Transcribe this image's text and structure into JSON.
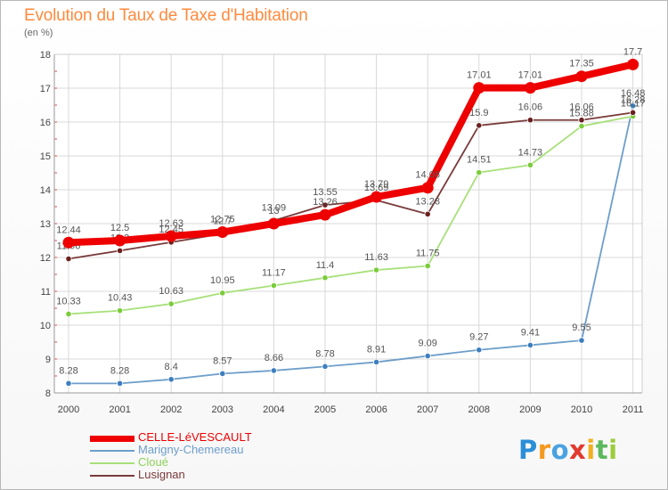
{
  "title": "Evolution du Taux de Taxe d'Habitation",
  "subtitle": "(en %)",
  "logo_text": "Proxiti",
  "logo_letters": [
    {
      "ch": "P",
      "color": "#2b8fd8"
    },
    {
      "ch": "r",
      "color": "#f39a1e"
    },
    {
      "ch": "o",
      "color": "#4aa3e0"
    },
    {
      "ch": "x",
      "color": "#e23a2e"
    },
    {
      "ch": "i",
      "color": "#f2b01e"
    },
    {
      "ch": "t",
      "color": "#5cb85c"
    },
    {
      "ch": "i",
      "color": "#9ccc3c"
    }
  ],
  "chart_data": {
    "type": "line",
    "title": "Evolution du Taux de Taxe d'Habitation",
    "subtitle": "(en %)",
    "xlabel": "",
    "ylabel": "",
    "ylim": [
      8,
      18
    ],
    "yticks": [
      "8",
      "9",
      "10",
      "11",
      "12",
      "13",
      "14",
      "15",
      "16",
      "17",
      "18"
    ],
    "categories": [
      "2000",
      "2001",
      "2002",
      "2003",
      "2004",
      "2005",
      "2006",
      "2007",
      "2008",
      "2009",
      "2010",
      "2011"
    ],
    "grid": true,
    "legend_position": "bottom-left",
    "series": [
      {
        "name": "Marigny-Chemereau",
        "color": "#6d9ec9",
        "marker_color": "#3d7fbf",
        "values": [
          8.28,
          8.28,
          8.4,
          8.57,
          8.66,
          8.78,
          8.91,
          9.09,
          9.27,
          9.41,
          9.55,
          16.48
        ],
        "labels": [
          "8.28",
          "8.28",
          "8.4",
          "8.57",
          "8.66",
          "8.78",
          "8.91",
          "9.09",
          "9.27",
          "9.41",
          "9.55",
          "16.48"
        ]
      },
      {
        "name": "Cloué",
        "color": "#a8e07a",
        "marker_color": "#7acc3a",
        "values": [
          10.33,
          10.43,
          10.63,
          10.95,
          11.17,
          11.4,
          11.63,
          11.75,
          14.51,
          14.73,
          15.88,
          16.17
        ],
        "labels": [
          "10.33",
          "10.43",
          "10.63",
          "10.95",
          "11.17",
          "11.4",
          "11.63",
          "11.75",
          "14.51",
          "14.73",
          "15.88",
          "16.17"
        ]
      },
      {
        "name": "Lusignan",
        "color": "#7a3b3b",
        "marker_color": "#6b2020",
        "values": [
          11.96,
          12.2,
          12.45,
          12.7,
          13.09,
          13.55,
          13.69,
          13.28,
          15.9,
          16.06,
          16.06,
          16.28
        ],
        "labels": [
          "11.96",
          "12.2",
          "12.45",
          "12.7",
          "13.09",
          "13.55",
          "13.69",
          "13.28",
          "15.9",
          "16.06",
          "16.06",
          "16.28"
        ]
      },
      {
        "name": "CELLE-LéVESCAULT",
        "color": "#ee0000",
        "marker_color": "#ee0000",
        "values": [
          12.44,
          12.5,
          12.63,
          12.75,
          13.0,
          13.26,
          13.79,
          14.06,
          17.01,
          17.01,
          17.35,
          17.7
        ],
        "labels": [
          "12.44",
          "12.5",
          "12.63",
          "12.75",
          "13",
          "13.26",
          "13.79",
          "14.06",
          "17.01",
          "17.01",
          "17.35",
          "17.7"
        ]
      }
    ],
    "legend": [
      {
        "name": "CELLE-LéVESCAULT",
        "color": "#ee0000",
        "weight": "heavy"
      },
      {
        "name": "Marigny-Chemereau",
        "color": "#6d9ec9",
        "weight": "thin"
      },
      {
        "name": "Cloué",
        "color": "#a8e07a",
        "weight": "thin"
      },
      {
        "name": "Lusignan",
        "color": "#7a3b3b",
        "weight": "thin"
      }
    ]
  }
}
